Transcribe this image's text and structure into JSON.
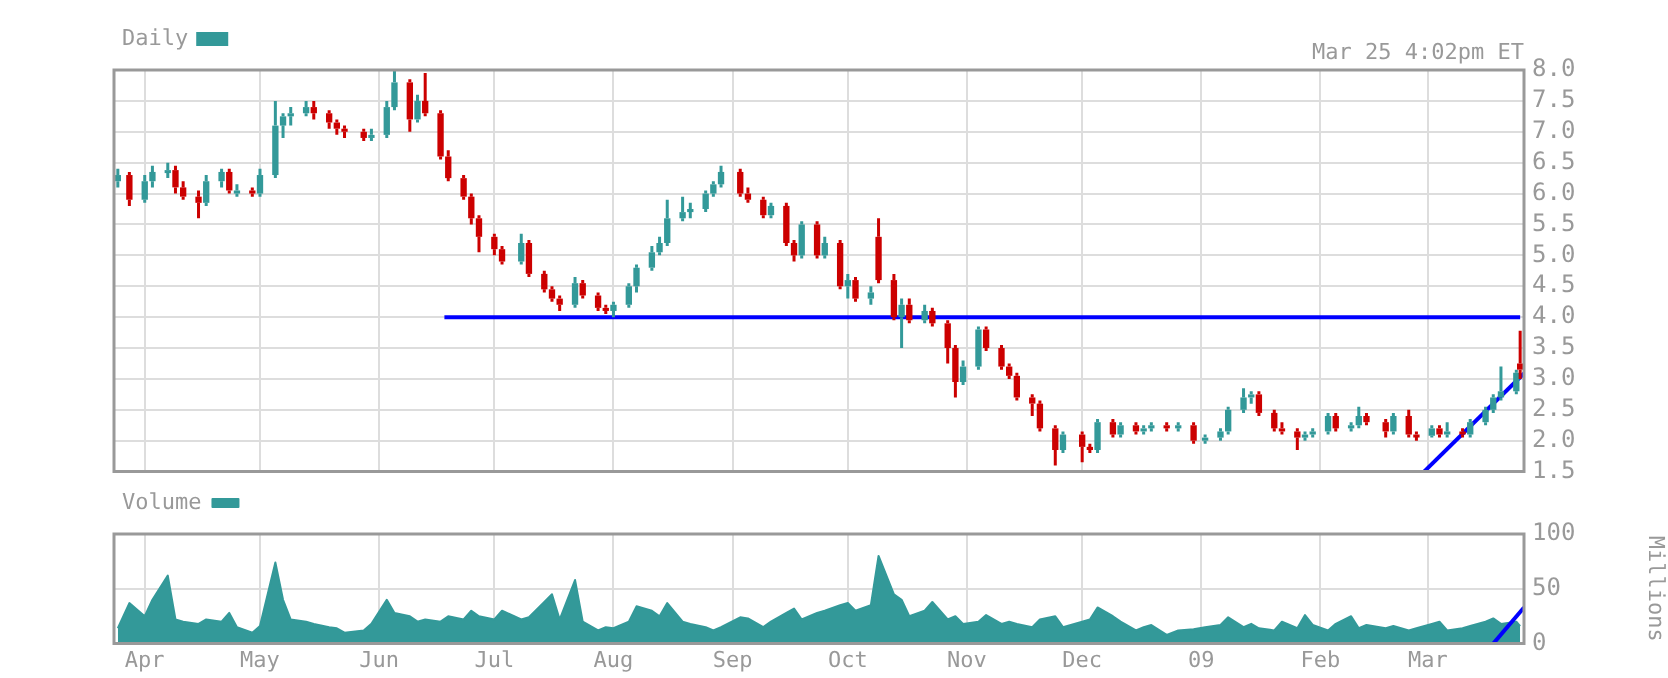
{
  "chart_data": [
    {
      "type": "candlestick",
      "legend": "top left",
      "grid": true,
      "tick_labels": "y",
      "annotations": [
        "Mar 25 4:02pm ET"
      ],
      "xlim": [
        "2008-03-24",
        "2009-03-26"
      ],
      "xticks": [
        {
          "value": "2008-04-01",
          "label": null
        },
        {
          "value": "2008-05-01",
          "label": null
        },
        {
          "value": "2008-06-01",
          "label": null
        },
        {
          "value": "2008-07-01",
          "label": null
        },
        {
          "value": "2008-08-01",
          "label": null
        },
        {
          "value": "2008-09-01",
          "label": null
        },
        {
          "value": "2008-10-01",
          "label": null
        },
        {
          "value": "2008-11-01",
          "label": null
        },
        {
          "value": "2008-12-01",
          "label": null
        },
        {
          "value": "2009-01-01",
          "label": null
        },
        {
          "value": "2009-02-01",
          "label": null
        },
        {
          "value": "2009-03-01",
          "label": null
        }
      ],
      "ylim": [
        1.5,
        8.0
      ],
      "yticks": [
        1.5,
        {
          "value": 2,
          "label": "2.0"
        },
        2.5,
        {
          "value": 3,
          "label": "3.0"
        },
        3.5,
        {
          "value": 4,
          "label": "4.0"
        },
        4.5,
        {
          "value": 5,
          "label": "5.0"
        },
        5.5,
        {
          "value": 6,
          "label": "6.0"
        },
        6.5,
        {
          "value": 7,
          "label": "7.0"
        },
        7.5,
        {
          "value": 8,
          "label": "8.0"
        }
      ],
      "x": [
        "2008-03-25",
        "2008-03-28",
        "2008-04-01",
        "2008-04-03",
        "2008-04-07",
        "2008-04-09",
        "2008-04-11",
        "2008-04-15",
        "2008-04-17",
        "2008-04-21",
        "2008-04-23",
        "2008-04-25",
        "2008-04-29",
        "2008-05-01",
        "2008-05-05",
        "2008-05-07",
        "2008-05-09",
        "2008-05-13",
        "2008-05-15",
        "2008-05-19",
        "2008-05-21",
        "2008-05-23",
        "2008-05-28",
        "2008-05-30",
        "2008-06-03",
        "2008-06-05",
        "2008-06-09",
        "2008-06-11",
        "2008-06-13",
        "2008-06-17",
        "2008-06-19",
        "2008-06-23",
        "2008-06-25",
        "2008-06-27",
        "2008-07-01",
        "2008-07-03",
        "2008-07-08",
        "2008-07-10",
        "2008-07-14",
        "2008-07-16",
        "2008-07-18",
        "2008-07-22",
        "2008-07-24",
        "2008-07-28",
        "2008-07-30",
        "2008-08-01",
        "2008-08-05",
        "2008-08-07",
        "2008-08-11",
        "2008-08-13",
        "2008-08-15",
        "2008-08-19",
        "2008-08-21",
        "2008-08-25",
        "2008-08-27",
        "2008-08-29",
        "2008-09-03",
        "2008-09-05",
        "2008-09-09",
        "2008-09-11",
        "2008-09-15",
        "2008-09-17",
        "2008-09-19",
        "2008-09-23",
        "2008-09-25",
        "2008-09-29",
        "2008-10-01",
        "2008-10-03",
        "2008-10-07",
        "2008-10-09",
        "2008-10-13",
        "2008-10-15",
        "2008-10-17",
        "2008-10-21",
        "2008-10-23",
        "2008-10-27",
        "2008-10-29",
        "2008-10-31",
        "2008-11-04",
        "2008-11-06",
        "2008-11-10",
        "2008-11-12",
        "2008-11-14",
        "2008-11-18",
        "2008-11-20",
        "2008-11-24",
        "2008-11-26",
        "2008-12-01",
        "2008-12-03",
        "2008-12-05",
        "2008-12-09",
        "2008-12-11",
        "2008-12-15",
        "2008-12-17",
        "2008-12-19",
        "2008-12-23",
        "2008-12-26",
        "2008-12-30",
        "2009-01-02",
        "2009-01-06",
        "2009-01-08",
        "2009-01-12",
        "2009-01-14",
        "2009-01-16",
        "2009-01-20",
        "2009-01-22",
        "2009-01-26",
        "2009-01-28",
        "2009-01-30",
        "2009-02-03",
        "2009-02-05",
        "2009-02-09",
        "2009-02-11",
        "2009-02-13",
        "2009-02-18",
        "2009-02-20",
        "2009-02-24",
        "2009-02-26",
        "2009-03-02",
        "2009-03-04",
        "2009-03-06",
        "2009-03-10",
        "2009-03-12",
        "2009-03-16",
        "2009-03-18",
        "2009-03-20",
        "2009-03-24",
        "2009-03-25"
      ],
      "series": [
        {
          "name": "Daily",
          "type": "candlestick",
          "color": "#339999",
          "ohlc": [
            [
              6.2,
              6.4,
              6.1,
              6.3
            ],
            [
              6.3,
              6.35,
              5.8,
              5.9
            ],
            [
              5.9,
              6.3,
              5.85,
              6.2
            ],
            [
              6.2,
              6.45,
              6.1,
              6.35
            ],
            [
              6.35,
              6.5,
              6.25,
              6.38
            ],
            [
              6.38,
              6.45,
              6.0,
              6.1
            ],
            [
              6.1,
              6.2,
              5.9,
              5.95
            ],
            [
              5.95,
              6.05,
              5.6,
              5.85
            ],
            [
              5.85,
              6.3,
              5.8,
              6.2
            ],
            [
              6.2,
              6.4,
              6.1,
              6.35
            ],
            [
              6.35,
              6.4,
              6.0,
              6.05
            ],
            [
              6.0,
              6.15,
              5.95,
              6.05
            ],
            [
              6.05,
              6.1,
              5.95,
              6.0
            ],
            [
              6.0,
              6.4,
              5.95,
              6.3
            ],
            [
              6.3,
              7.5,
              6.25,
              7.1
            ],
            [
              7.1,
              7.3,
              6.9,
              7.25
            ],
            [
              7.25,
              7.4,
              7.1,
              7.3
            ],
            [
              7.3,
              7.5,
              7.25,
              7.4
            ],
            [
              7.4,
              7.5,
              7.2,
              7.3
            ],
            [
              7.3,
              7.35,
              7.05,
              7.15
            ],
            [
              7.15,
              7.2,
              6.95,
              7.05
            ],
            [
              7.05,
              7.1,
              6.9,
              7.0
            ],
            [
              7.0,
              7.05,
              6.85,
              6.9
            ],
            [
              6.9,
              7.05,
              6.85,
              6.95
            ],
            [
              6.95,
              7.5,
              6.9,
              7.4
            ],
            [
              7.4,
              8.0,
              7.35,
              7.8
            ],
            [
              7.8,
              7.85,
              7.0,
              7.2
            ],
            [
              7.2,
              7.6,
              7.15,
              7.5
            ],
            [
              7.5,
              7.95,
              7.25,
              7.3
            ],
            [
              7.3,
              7.35,
              6.55,
              6.6
            ],
            [
              6.6,
              6.7,
              6.2,
              6.25
            ],
            [
              6.25,
              6.3,
              5.9,
              5.95
            ],
            [
              5.95,
              6.0,
              5.5,
              5.6
            ],
            [
              5.6,
              5.65,
              5.05,
              5.3
            ],
            [
              5.3,
              5.35,
              5.0,
              5.1
            ],
            [
              5.1,
              5.15,
              4.85,
              4.9
            ],
            [
              4.9,
              5.35,
              4.85,
              5.2
            ],
            [
              5.2,
              5.25,
              4.65,
              4.7
            ],
            [
              4.7,
              4.75,
              4.4,
              4.45
            ],
            [
              4.45,
              4.5,
              4.25,
              4.3
            ],
            [
              4.3,
              4.35,
              4.1,
              4.2
            ],
            [
              4.2,
              4.65,
              4.15,
              4.55
            ],
            [
              4.55,
              4.6,
              4.3,
              4.35
            ],
            [
              4.35,
              4.4,
              4.1,
              4.15
            ],
            [
              4.15,
              4.2,
              4.05,
              4.1
            ],
            [
              4.1,
              4.25,
              4.0,
              4.2
            ],
            [
              4.2,
              4.55,
              4.15,
              4.5
            ],
            [
              4.5,
              4.85,
              4.4,
              4.8
            ],
            [
              4.8,
              5.15,
              4.75,
              5.05
            ],
            [
              5.05,
              5.3,
              5.0,
              5.2
            ],
            [
              5.2,
              5.9,
              5.15,
              5.6
            ],
            [
              5.6,
              5.95,
              5.55,
              5.7
            ],
            [
              5.7,
              5.85,
              5.6,
              5.75
            ],
            [
              5.75,
              6.05,
              5.7,
              6.0
            ],
            [
              6.0,
              6.2,
              5.95,
              6.15
            ],
            [
              6.15,
              6.45,
              6.1,
              6.35
            ],
            [
              6.35,
              6.4,
              5.95,
              6.0
            ],
            [
              6.0,
              6.1,
              5.85,
              5.9
            ],
            [
              5.9,
              5.95,
              5.6,
              5.65
            ],
            [
              5.65,
              5.85,
              5.6,
              5.8
            ],
            [
              5.8,
              5.85,
              5.15,
              5.2
            ],
            [
              5.2,
              5.25,
              4.9,
              5.0
            ],
            [
              5.0,
              5.55,
              4.95,
              5.5
            ],
            [
              5.5,
              5.55,
              4.95,
              5.0
            ],
            [
              5.0,
              5.3,
              4.95,
              5.2
            ],
            [
              5.2,
              5.25,
              4.45,
              4.5
            ],
            [
              4.5,
              4.7,
              4.3,
              4.6
            ],
            [
              4.6,
              4.65,
              4.25,
              4.3
            ],
            [
              4.3,
              4.5,
              4.2,
              4.4
            ],
            [
              5.3,
              5.6,
              4.55,
              4.6
            ],
            [
              4.6,
              4.7,
              3.95,
              4.0
            ],
            [
              4.0,
              4.3,
              3.5,
              4.2
            ],
            [
              4.2,
              4.3,
              3.9,
              3.95
            ],
            [
              3.95,
              4.2,
              3.9,
              4.1
            ],
            [
              4.1,
              4.15,
              3.85,
              3.9
            ],
            [
              3.9,
              3.95,
              3.25,
              3.5
            ],
            [
              3.5,
              3.55,
              2.7,
              2.95
            ],
            [
              2.95,
              3.3,
              2.9,
              3.2
            ],
            [
              3.2,
              3.85,
              3.15,
              3.8
            ],
            [
              3.8,
              3.85,
              3.45,
              3.5
            ],
            [
              3.5,
              3.55,
              3.15,
              3.2
            ],
            [
              3.2,
              3.25,
              3.0,
              3.05
            ],
            [
              3.05,
              3.1,
              2.65,
              2.7
            ],
            [
              2.7,
              2.75,
              2.4,
              2.6
            ],
            [
              2.6,
              2.65,
              2.15,
              2.2
            ],
            [
              2.2,
              2.25,
              1.6,
              1.85
            ],
            [
              1.85,
              2.15,
              1.8,
              2.1
            ],
            [
              2.1,
              2.15,
              1.65,
              1.9
            ],
            [
              1.9,
              1.95,
              1.8,
              1.85
            ],
            [
              1.85,
              2.35,
              1.8,
              2.3
            ],
            [
              2.3,
              2.35,
              2.05,
              2.1
            ],
            [
              2.1,
              2.3,
              2.05,
              2.25
            ],
            [
              2.25,
              2.3,
              2.1,
              2.15
            ],
            [
              2.15,
              2.25,
              2.1,
              2.2
            ],
            [
              2.2,
              2.3,
              2.15,
              2.25
            ],
            [
              2.25,
              2.3,
              2.15,
              2.2
            ],
            [
              2.2,
              2.3,
              2.15,
              2.25
            ],
            [
              2.25,
              2.3,
              1.95,
              2.0
            ],
            [
              2.0,
              2.1,
              1.95,
              2.05
            ],
            [
              2.05,
              2.2,
              2.0,
              2.15
            ],
            [
              2.15,
              2.55,
              2.1,
              2.5
            ],
            [
              2.5,
              2.85,
              2.45,
              2.7
            ],
            [
              2.7,
              2.8,
              2.6,
              2.75
            ],
            [
              2.75,
              2.8,
              2.4,
              2.45
            ],
            [
              2.45,
              2.5,
              2.15,
              2.2
            ],
            [
              2.2,
              2.3,
              2.1,
              2.15
            ],
            [
              2.15,
              2.2,
              1.85,
              2.05
            ],
            [
              2.05,
              2.15,
              2.0,
              2.1
            ],
            [
              2.1,
              2.2,
              2.05,
              2.15
            ],
            [
              2.15,
              2.45,
              2.1,
              2.4
            ],
            [
              2.4,
              2.45,
              2.15,
              2.2
            ],
            [
              2.2,
              2.3,
              2.15,
              2.25
            ],
            [
              2.25,
              2.55,
              2.2,
              2.4
            ],
            [
              2.4,
              2.45,
              2.25,
              2.3
            ],
            [
              2.3,
              2.35,
              2.05,
              2.15
            ],
            [
              2.15,
              2.45,
              2.1,
              2.4
            ],
            [
              2.4,
              2.5,
              2.05,
              2.1
            ],
            [
              2.1,
              2.15,
              2.0,
              2.08
            ],
            [
              2.08,
              2.25,
              2.05,
              2.2
            ],
            [
              2.2,
              2.25,
              2.05,
              2.1
            ],
            [
              2.1,
              2.3,
              2.05,
              2.15
            ],
            [
              2.15,
              2.2,
              2.05,
              2.1
            ],
            [
              2.1,
              2.35,
              2.05,
              2.3
            ],
            [
              2.3,
              2.55,
              2.25,
              2.5
            ],
            [
              2.5,
              2.75,
              2.45,
              2.7
            ],
            [
              2.7,
              3.2,
              2.65,
              2.8
            ],
            [
              2.8,
              3.15,
              2.75,
              3.1
            ],
            [
              3.25,
              3.78,
              3.0,
              3.15
            ]
          ],
          "colors": [
            "#339999",
            "#cc0000",
            "#339999",
            "#339999",
            "#339999",
            "#cc0000",
            "#cc0000",
            "#cc0000",
            "#339999",
            "#339999",
            "#cc0000",
            "#339999",
            "#cc0000",
            "#339999",
            "#339999",
            "#339999",
            "#339999",
            "#339999",
            "#cc0000",
            "#cc0000",
            "#cc0000",
            "#cc0000",
            "#cc0000",
            "#339999",
            "#339999",
            "#339999",
            "#cc0000",
            "#339999",
            "#cc0000",
            "#cc0000",
            "#cc0000",
            "#cc0000",
            "#cc0000",
            "#cc0000",
            "#cc0000",
            "#cc0000",
            "#339999",
            "#cc0000",
            "#cc0000",
            "#cc0000",
            "#cc0000",
            "#339999",
            "#cc0000",
            "#cc0000",
            "#cc0000",
            "#339999",
            "#339999",
            "#339999",
            "#339999",
            "#339999",
            "#339999",
            "#339999",
            "#339999",
            "#339999",
            "#339999",
            "#339999",
            "#cc0000",
            "#cc0000",
            "#cc0000",
            "#339999",
            "#cc0000",
            "#cc0000",
            "#339999",
            "#cc0000",
            "#339999",
            "#cc0000",
            "#339999",
            "#cc0000",
            "#339999",
            "#cc0000",
            "#cc0000",
            "#339999",
            "#cc0000",
            "#339999",
            "#cc0000",
            "#cc0000",
            "#cc0000",
            "#339999",
            "#339999",
            "#cc0000",
            "#cc0000",
            "#cc0000",
            "#cc0000",
            "#cc0000",
            "#cc0000",
            "#cc0000",
            "#339999",
            "#cc0000",
            "#cc0000",
            "#339999",
            "#cc0000",
            "#339999",
            "#cc0000",
            "#339999",
            "#339999",
            "#cc0000",
            "#339999",
            "#cc0000",
            "#339999",
            "#339999",
            "#339999",
            "#339999",
            "#339999",
            "#cc0000",
            "#cc0000",
            "#cc0000",
            "#cc0000",
            "#339999",
            "#339999",
            "#339999",
            "#cc0000",
            "#339999",
            "#339999",
            "#cc0000",
            "#cc0000",
            "#339999",
            "#cc0000",
            "#cc0000",
            "#339999",
            "#cc0000",
            "#339999",
            "#cc0000",
            "#339999",
            "#339999",
            "#339999",
            "#339999",
            "#339999",
            "#cc0000"
          ]
        },
        {
          "type": "line",
          "color": "#0000ff",
          "x": [
            "2008-06-18",
            "2009-03-25"
          ],
          "values": [
            4.0,
            4.0
          ]
        },
        {
          "type": "line",
          "color": "#0000ff",
          "x": [
            "2009-02-28",
            "2009-03-26"
          ],
          "values": [
            1.5,
            3.09
          ]
        }
      ]
    },
    {
      "type": "area",
      "legend": "top left",
      "grid": true,
      "ylabel": "Millions",
      "xlim": [
        "2008-03-24",
        "2009-03-26"
      ],
      "xticks": [
        {
          "value": "2008-04-01",
          "label": "Apr"
        },
        {
          "value": "2008-05-01",
          "label": "May"
        },
        {
          "value": "2008-06-01",
          "label": "Jun"
        },
        {
          "value": "2008-07-01",
          "label": "Jul"
        },
        {
          "value": "2008-08-01",
          "label": "Aug"
        },
        {
          "value": "2008-09-01",
          "label": "Sep"
        },
        {
          "value": "2008-10-01",
          "label": "Oct"
        },
        {
          "value": "2008-11-01",
          "label": "Nov"
        },
        {
          "value": "2008-12-01",
          "label": "Dec"
        },
        {
          "value": "2009-01-01",
          "label": "09"
        },
        {
          "value": "2009-02-01",
          "label": "Feb"
        },
        {
          "value": "2009-03-01",
          "label": "Mar"
        }
      ],
      "ylim": [
        0,
        100
      ],
      "yticks": [
        0,
        50,
        100
      ],
      "x": [
        "2008-03-25",
        "2008-03-28",
        "2008-04-01",
        "2008-04-03",
        "2008-04-07",
        "2008-04-09",
        "2008-04-11",
        "2008-04-15",
        "2008-04-17",
        "2008-04-21",
        "2008-04-23",
        "2008-04-25",
        "2008-04-29",
        "2008-05-01",
        "2008-05-05",
        "2008-05-07",
        "2008-05-09",
        "2008-05-13",
        "2008-05-15",
        "2008-05-19",
        "2008-05-21",
        "2008-05-23",
        "2008-05-28",
        "2008-05-30",
        "2008-06-03",
        "2008-06-05",
        "2008-06-09",
        "2008-06-11",
        "2008-06-13",
        "2008-06-17",
        "2008-06-19",
        "2008-06-23",
        "2008-06-25",
        "2008-06-27",
        "2008-07-01",
        "2008-07-03",
        "2008-07-08",
        "2008-07-10",
        "2008-07-14",
        "2008-07-16",
        "2008-07-18",
        "2008-07-22",
        "2008-07-24",
        "2008-07-28",
        "2008-07-30",
        "2008-08-01",
        "2008-08-05",
        "2008-08-07",
        "2008-08-11",
        "2008-08-13",
        "2008-08-15",
        "2008-08-19",
        "2008-08-21",
        "2008-08-25",
        "2008-08-27",
        "2008-08-29",
        "2008-09-03",
        "2008-09-05",
        "2008-09-09",
        "2008-09-11",
        "2008-09-15",
        "2008-09-17",
        "2008-09-19",
        "2008-09-23",
        "2008-09-25",
        "2008-09-29",
        "2008-10-01",
        "2008-10-03",
        "2008-10-07",
        "2008-10-09",
        "2008-10-13",
        "2008-10-15",
        "2008-10-17",
        "2008-10-21",
        "2008-10-23",
        "2008-10-27",
        "2008-10-29",
        "2008-10-31",
        "2008-11-04",
        "2008-11-06",
        "2008-11-10",
        "2008-11-12",
        "2008-11-14",
        "2008-11-18",
        "2008-11-20",
        "2008-11-24",
        "2008-11-26",
        "2008-12-01",
        "2008-12-03",
        "2008-12-05",
        "2008-12-09",
        "2008-12-11",
        "2008-12-15",
        "2008-12-17",
        "2008-12-19",
        "2008-12-23",
        "2008-12-26",
        "2008-12-30",
        "2009-01-02",
        "2009-01-06",
        "2009-01-08",
        "2009-01-12",
        "2009-01-14",
        "2009-01-16",
        "2009-01-20",
        "2009-01-22",
        "2009-01-26",
        "2009-01-28",
        "2009-01-30",
        "2009-02-03",
        "2009-02-05",
        "2009-02-09",
        "2009-02-11",
        "2009-02-13",
        "2009-02-18",
        "2009-02-20",
        "2009-02-24",
        "2009-02-26",
        "2009-03-02",
        "2009-03-04",
        "2009-03-06",
        "2009-03-10",
        "2009-03-12",
        "2009-03-16",
        "2009-03-18",
        "2009-03-20",
        "2009-03-24",
        "2009-03-25"
      ],
      "series": [
        {
          "type": "line",
          "color": "#0000ff",
          "x": [
            "2009-03-18",
            "2009-03-26"
          ],
          "values": [
            0,
            33
          ]
        },
        {
          "name": "Volume",
          "color": "#339999",
          "values": [
            14,
            37,
            25,
            40,
            62,
            22,
            20,
            18,
            22,
            20,
            28,
            15,
            10,
            16,
            74,
            40,
            22,
            20,
            18,
            15,
            14,
            10,
            12,
            18,
            40,
            28,
            25,
            20,
            22,
            20,
            25,
            22,
            30,
            25,
            22,
            30,
            22,
            24,
            38,
            45,
            22,
            58,
            20,
            12,
            15,
            14,
            20,
            34,
            30,
            25,
            37,
            20,
            18,
            15,
            12,
            15,
            24,
            23,
            15,
            20,
            28,
            32,
            22,
            28,
            30,
            35,
            37,
            30,
            35,
            80,
            45,
            40,
            25,
            30,
            38,
            22,
            25,
            18,
            20,
            26,
            18,
            20,
            18,
            15,
            22,
            25,
            15,
            20,
            22,
            33,
            25,
            20,
            12,
            15,
            17,
            8,
            12,
            13,
            15,
            17,
            24,
            15,
            18,
            14,
            12,
            20,
            14,
            26,
            17,
            12,
            18,
            25,
            14,
            17,
            14,
            16,
            12,
            14,
            18,
            20,
            12,
            14,
            16,
            20,
            23,
            18,
            20,
            16
          ]
        }
      ]
    }
  ]
}
